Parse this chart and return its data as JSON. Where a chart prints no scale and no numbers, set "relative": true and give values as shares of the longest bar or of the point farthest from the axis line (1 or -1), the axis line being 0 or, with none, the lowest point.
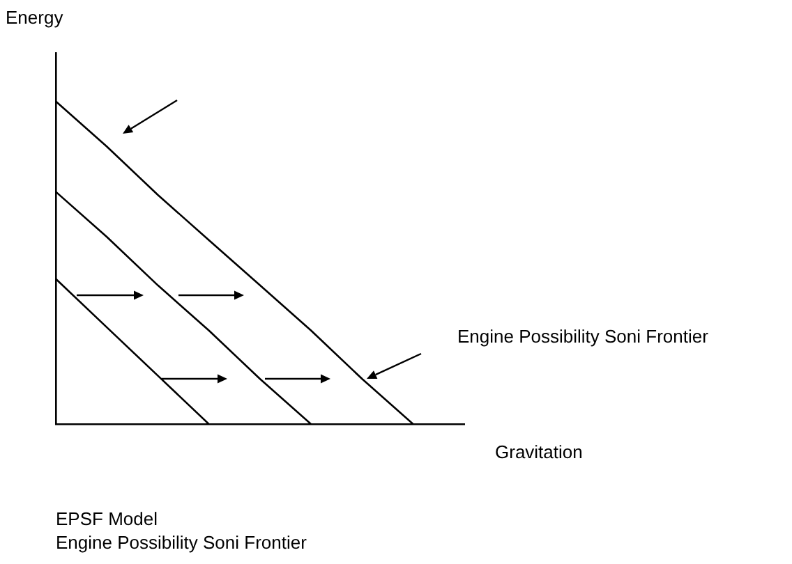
{
  "chart_data": {
    "type": "line",
    "relative": true,
    "xlabel": "Gravitation",
    "ylabel": "Energy",
    "categories": [
      null,
      null,
      null,
      null,
      null,
      null,
      null,
      null,
      null
    ],
    "grid": false,
    "legend": false,
    "marker": "none",
    "series": [
      {
        "color": "#000000",
        "values": [
          1,
          0.86,
          0.71,
          0.57,
          0.43,
          0.29,
          0.14,
          0,
          null
        ]
      },
      {
        "color": "#000000",
        "values": [
          0.72,
          0.58,
          0.43,
          0.29,
          0.14,
          0,
          null,
          null,
          null
        ]
      },
      {
        "color": "#000000",
        "values": [
          0.45,
          0.3,
          0.15,
          0,
          null,
          null,
          null,
          null,
          null
        ]
      }
    ],
    "annotations": [
      "Engine Possibility Soni Frontier",
      "EPSF Model",
      "Engine Possibility Soni Frontier"
    ]
  }
}
